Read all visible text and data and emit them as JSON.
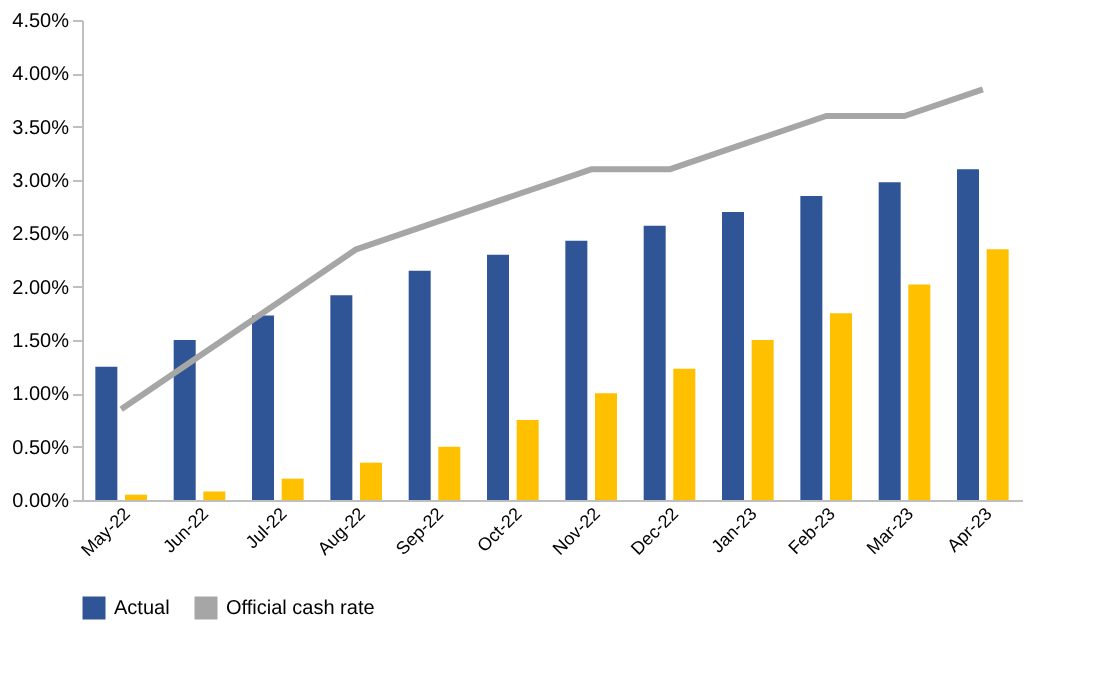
{
  "chart_data": {
    "type": "bar",
    "categories": [
      "May-22",
      "Jun-22",
      "Jul-22",
      "Aug-22",
      "Sep-22",
      "Oct-22",
      "Nov-22",
      "Dec-22",
      "Jan-23",
      "Feb-23",
      "Mar-23",
      "Apr-23"
    ],
    "series": [
      {
        "name": "Actual",
        "color": "#2f5597",
        "values": [
          1.25,
          1.5,
          1.73,
          1.92,
          2.15,
          2.3,
          2.43,
          2.57,
          2.7,
          2.85,
          2.98,
          3.1
        ]
      },
      {
        "color": "#ffc000",
        "values": [
          0.05,
          0.08,
          0.2,
          0.35,
          0.5,
          0.75,
          1.0,
          1.23,
          1.5,
          1.75,
          2.02,
          2.35
        ]
      },
      {
        "name": "Official cash rate",
        "type": "line",
        "color": "#a6a6a6",
        "values": [
          0.85,
          1.35,
          1.85,
          2.35,
          2.6,
          2.85,
          3.1,
          3.1,
          3.35,
          3.6,
          3.6,
          3.85
        ]
      }
    ],
    "ylim": [
      0,
      4.5
    ],
    "yticks": [
      {
        "value": 0,
        "label": "0.00%"
      },
      {
        "value": 0.5,
        "label": "0.50%"
      },
      {
        "value": 1,
        "label": "1.00%"
      },
      {
        "value": 1.5,
        "label": "1.50%"
      },
      {
        "value": 2,
        "label": "2.00%"
      },
      {
        "value": 2.5,
        "label": "2.50%"
      },
      {
        "value": 3,
        "label": "3.00%"
      },
      {
        "value": 3.5,
        "label": "3.50%"
      },
      {
        "value": 4,
        "label": "4.00%"
      },
      {
        "value": 4.5,
        "label": "4.50%"
      }
    ],
    "grid": false,
    "legend": "bottom",
    "marker": "none",
    "line_style": "solid"
  }
}
